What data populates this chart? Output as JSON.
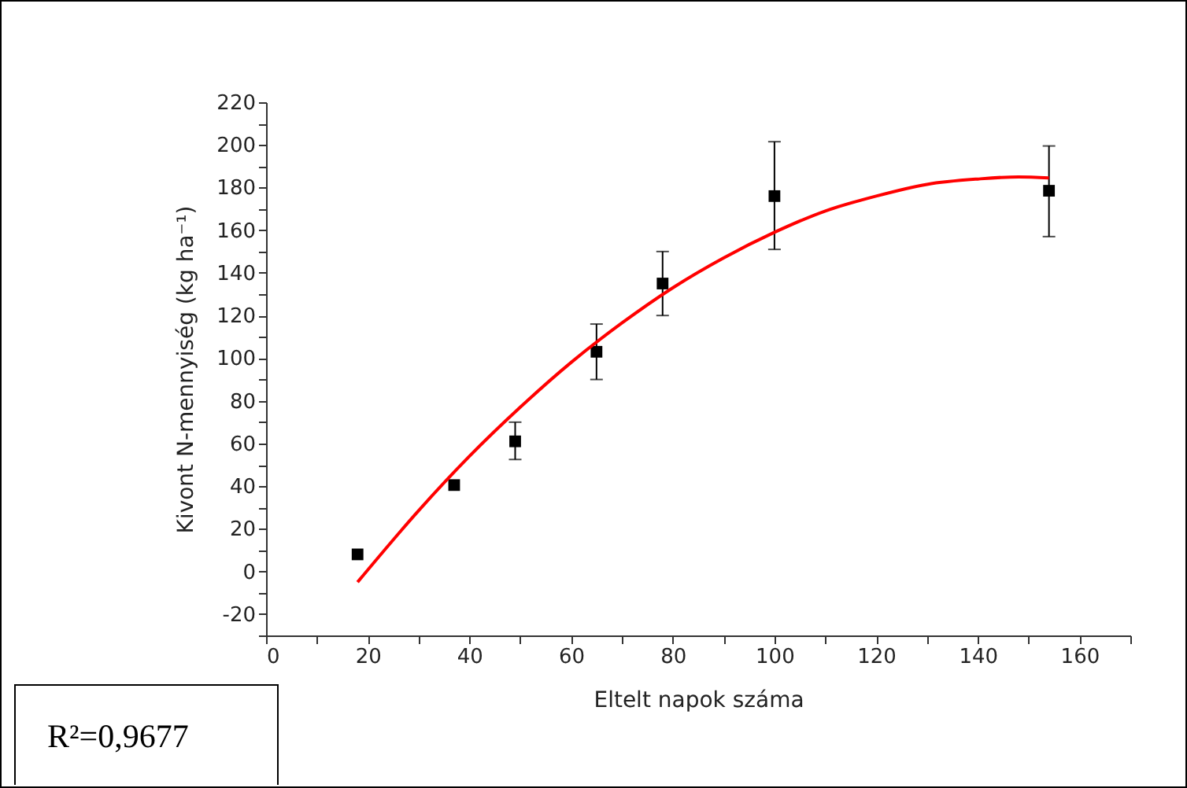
{
  "chart_data": {
    "type": "scatter",
    "xlabel": "Eltelt napok száma",
    "ylabel": "Kivont N-mennyiség (kg ha⁻¹)",
    "xlim": [
      0,
      170
    ],
    "xticks": [
      0,
      {
        "value": 10,
        "label": null
      },
      20,
      {
        "value": 30,
        "label": null
      },
      40,
      {
        "value": 50,
        "label": null
      },
      60,
      {
        "value": 70,
        "label": null
      },
      80,
      {
        "value": 90,
        "label": null
      },
      100,
      {
        "value": 110,
        "label": null
      },
      120,
      {
        "value": 130,
        "label": null
      },
      140,
      {
        "value": 150,
        "label": null
      },
      160,
      {
        "value": 170,
        "label": null
      }
    ],
    "ylim": [
      -30,
      220
    ],
    "yticks": [
      {
        "value": -30,
        "label": null
      },
      -20,
      {
        "value": -10,
        "label": null
      },
      0,
      {
        "value": 10,
        "label": null
      },
      20,
      {
        "value": 30,
        "label": null
      },
      40,
      {
        "value": 50,
        "label": null
      },
      60,
      {
        "value": 70,
        "label": null
      },
      80,
      {
        "value": 90,
        "label": null
      },
      100,
      {
        "value": 110,
        "label": null
      },
      120,
      {
        "value": 130,
        "label": null
      },
      140,
      {
        "value": 150,
        "label": null
      },
      160,
      {
        "value": 170,
        "label": null
      },
      180,
      {
        "value": 190,
        "label": null
      },
      200,
      {
        "value": 210,
        "label": null
      },
      220
    ],
    "grid": false,
    "series": [
      {
        "color": "#000000",
        "marker": "square",
        "x": [
          18,
          37,
          49,
          65,
          78,
          100,
          154
        ],
        "values": [
          8,
          40.5,
          61,
          103,
          135,
          176,
          178.5
        ],
        "errors": [
          null,
          null,
          [
            52.5,
            70
          ],
          [
            90,
            116
          ],
          [
            120,
            150
          ],
          [
            151,
            201.5
          ],
          [
            157,
            199.5
          ]
        ]
      },
      {
        "type": "line",
        "color": "#ff0000",
        "marker": "none",
        "line_style": "solid",
        "x": [
          18,
          30,
          40,
          50,
          60,
          70,
          80,
          90,
          100,
          110,
          120,
          130,
          140,
          148,
          154
        ],
        "values": [
          -5,
          28.5,
          54,
          77,
          98,
          116.5,
          133,
          147,
          159,
          169,
          176,
          181.5,
          184,
          185,
          184.5
        ]
      }
    ],
    "annotations": [
      "R²=0,9677"
    ]
  }
}
